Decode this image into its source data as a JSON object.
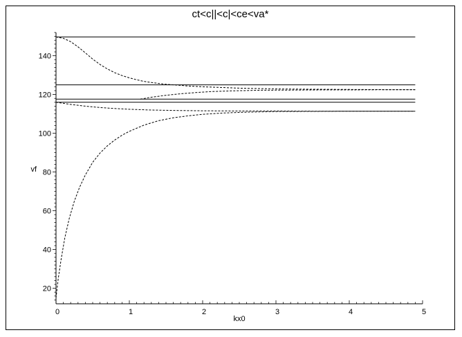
{
  "chart_data": {
    "type": "line",
    "title": "ct<c||<c|<ce<va*",
    "xlabel": "kx0",
    "ylabel": "vf",
    "xlim": [
      0,
      5
    ],
    "ylim": [
      12,
      152
    ],
    "x_ticks": [
      0,
      1,
      2,
      3,
      4,
      5
    ],
    "y_ticks": [
      20,
      40,
      60,
      80,
      100,
      120,
      140
    ],
    "grid": false,
    "legend": "none",
    "series": [
      {
        "style": "solid",
        "x": [
          0,
          4.9
        ],
        "y": [
          149.7,
          149.7
        ]
      },
      {
        "style": "solid",
        "x": [
          0,
          4.9
        ],
        "y": [
          125.0,
          125.0
        ]
      },
      {
        "style": "solid",
        "x": [
          0,
          4.9
        ],
        "y": [
          117.6,
          117.6
        ]
      },
      {
        "style": "solid",
        "x": [
          0,
          4.9
        ],
        "y": [
          116.0,
          116.0
        ]
      },
      {
        "style": "dashed",
        "x": [
          0,
          0.1,
          0.2,
          0.3,
          0.4,
          0.5,
          0.6,
          0.7,
          0.8,
          0.9,
          1.0,
          1.1,
          1.2,
          1.3,
          1.4,
          1.5,
          1.6,
          1.7,
          1.8,
          2.0,
          2.2,
          2.5,
          3.0,
          3.5,
          4.0,
          4.5,
          4.9
        ],
        "y": [
          149.7,
          149.0,
          147.3,
          144.6,
          141.5,
          138.3,
          135.5,
          133.2,
          131.3,
          129.8,
          128.6,
          127.6,
          126.8,
          126.2,
          125.7,
          125.3,
          125.0,
          124.7,
          124.4,
          124.0,
          123.7,
          123.3,
          122.9,
          122.7,
          122.6,
          122.5,
          122.5
        ]
      },
      {
        "style": "dashed",
        "x": [
          1.15,
          1.3,
          1.5,
          1.7,
          1.9,
          2.1,
          2.4,
          2.8,
          3.2,
          3.6,
          4.0,
          4.5,
          4.9
        ],
        "y": [
          117.6,
          118.6,
          119.6,
          120.4,
          121.0,
          121.5,
          121.9,
          122.2,
          122.3,
          122.4,
          122.4,
          122.5,
          122.5
        ]
      },
      {
        "style": "dashed",
        "x": [
          0,
          0.2,
          0.4,
          0.6,
          0.8,
          1.0,
          1.3,
          1.6,
          2.0,
          2.5,
          3.0,
          3.5,
          4.0,
          4.5,
          4.9
        ],
        "y": [
          116.0,
          114.9,
          114.0,
          113.3,
          112.8,
          112.4,
          112.0,
          111.8,
          111.6,
          111.5,
          111.5,
          111.4,
          111.4,
          111.4,
          111.4
        ]
      },
      {
        "style": "dashed",
        "x": [
          0,
          0.03,
          0.07,
          0.12,
          0.18,
          0.25,
          0.32,
          0.4,
          0.5,
          0.6,
          0.7,
          0.8,
          0.9,
          1.0,
          1.2,
          1.4,
          1.6,
          1.8,
          2.0,
          2.3,
          2.6,
          3.0,
          3.5,
          4.0,
          4.5,
          4.9
        ],
        "y": [
          15.0,
          25.0,
          35.0,
          46.0,
          56.0,
          65.0,
          72.0,
          78.5,
          85.0,
          89.8,
          93.5,
          96.5,
          99.0,
          101.0,
          104.2,
          106.5,
          108.0,
          109.0,
          109.8,
          110.5,
          110.9,
          111.2,
          111.3,
          111.4,
          111.4,
          111.4
        ]
      }
    ]
  }
}
